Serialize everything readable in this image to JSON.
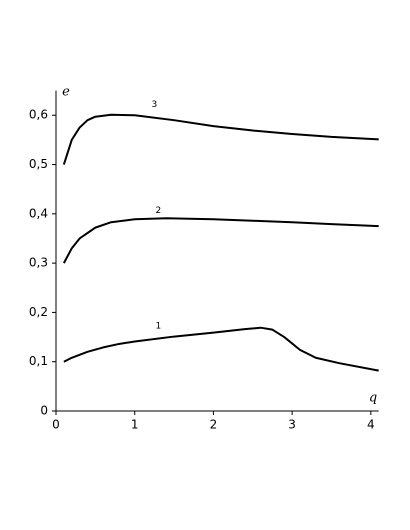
{
  "chart_data": {
    "type": "line",
    "x_label": "q",
    "y_label": "e",
    "xlim": [
      0,
      4.1
    ],
    "ylim": [
      0,
      0.65
    ],
    "xticks": [
      0,
      1,
      2,
      3,
      4
    ],
    "yticks": [
      0,
      {
        "value": 0.1,
        "label": "0,1"
      },
      {
        "value": 0.2,
        "label": "0,2"
      },
      {
        "value": 0.3,
        "label": "0,3"
      },
      {
        "value": 0.4,
        "label": "0,4"
      },
      {
        "value": 0.5,
        "label": "0,5"
      },
      {
        "value": 0.6,
        "label": "0,6"
      }
    ],
    "series": [
      {
        "color": "#000000",
        "x": [
          0.1,
          0.2,
          0.4,
          0.6,
          0.8,
          1,
          1.5,
          2,
          2.4,
          2.6,
          2.75,
          2.9,
          3.1,
          3.3,
          3.6,
          4.1
        ],
        "values": [
          0.1,
          0.108,
          0.12,
          0.129,
          0.136,
          0.141,
          0.151,
          0.159,
          0.166,
          0.169,
          0.165,
          0.15,
          0.124,
          0.108,
          0.097,
          0.082
        ]
      },
      {
        "color": "#000000",
        "x": [
          0.1,
          0.2,
          0.3,
          0.5,
          0.7,
          1,
          1.4,
          2,
          2.5,
          3,
          3.5,
          4.1
        ],
        "values": [
          0.3,
          0.33,
          0.35,
          0.372,
          0.383,
          0.389,
          0.391,
          0.389,
          0.386,
          0.383,
          0.379,
          0.375
        ]
      },
      {
        "color": "#000000",
        "x": [
          0.1,
          0.2,
          0.3,
          0.4,
          0.5,
          0.7,
          1,
          1.5,
          2,
          2.5,
          3,
          3.5,
          4.1
        ],
        "values": [
          0.5,
          0.55,
          0.575,
          0.59,
          0.597,
          0.601,
          0.6,
          0.59,
          0.578,
          0.569,
          0.562,
          0.556,
          0.551
        ]
      }
    ],
    "annotations": [
      {
        "text": "1",
        "x": 1.3,
        "y": 0.172
      },
      {
        "text": "2",
        "x": 1.3,
        "y": 0.407
      },
      {
        "text": "3",
        "x": 1.25,
        "y": 0.622
      }
    ]
  }
}
